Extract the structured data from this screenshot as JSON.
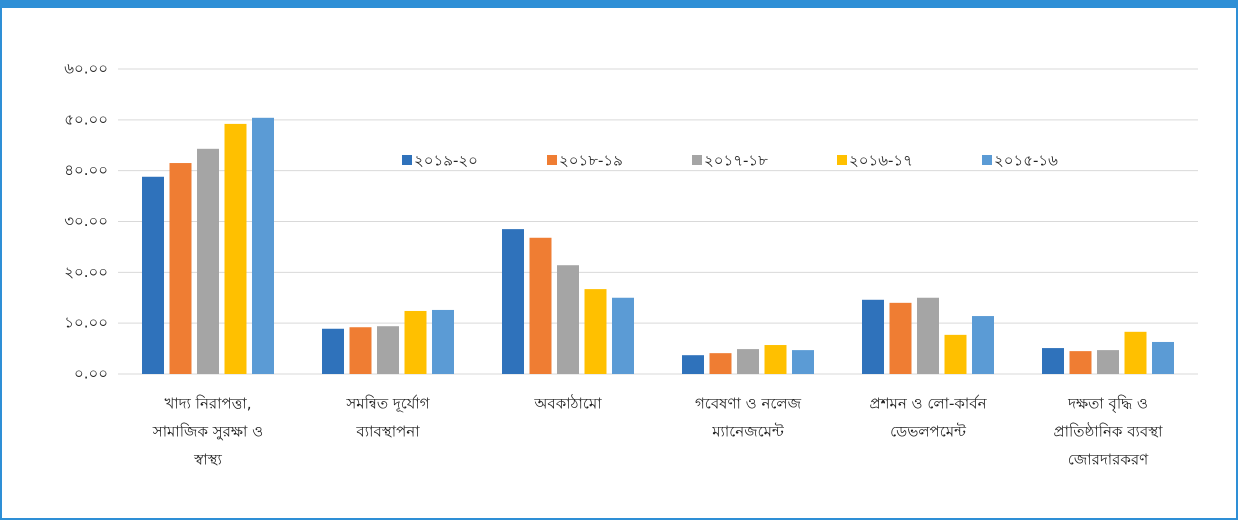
{
  "chart_data": {
    "type": "bar",
    "categories": [
      [
        "খাদ্য নিরাপত্তা,",
        "সামাজিক সুরক্ষা ও",
        "স্বাস্থ্য"
      ],
      [
        "সমন্বিত দূর্যোগ",
        "ব্যাবস্থাপনা"
      ],
      [
        "অবকাঠামো"
      ],
      [
        "গবেষণা ও নলেজ",
        "ম্যানেজমেন্ট"
      ],
      [
        "প্রশমন ও লো-কার্বন",
        "ডেভলপমেন্ট"
      ],
      [
        "দক্ষতা বৃদ্ধি ও",
        "প্রাতিষ্ঠানিক ব্যবস্থা",
        "জোরদারকরণ"
      ]
    ],
    "series": [
      {
        "name": "২০১৯-২০",
        "color": "#2f72bb",
        "values": [
          38.8,
          8.9,
          28.5,
          3.7,
          14.6,
          5.1
        ]
      },
      {
        "name": "২০১৮-১৯",
        "color": "#ef7d33",
        "values": [
          41.5,
          9.2,
          26.8,
          4.1,
          14.0,
          4.5
        ]
      },
      {
        "name": "২০১৭-১৮",
        "color": "#a5a5a5",
        "values": [
          44.3,
          9.4,
          21.4,
          4.9,
          15.0,
          4.7
        ]
      },
      {
        "name": "২০১৬-১৭",
        "color": "#ffc000",
        "values": [
          49.2,
          12.4,
          16.7,
          5.7,
          7.7,
          8.3
        ]
      },
      {
        "name": "২০১৫-১৬",
        "color": "#5b9bd5",
        "values": [
          50.4,
          12.6,
          15.0,
          4.7,
          11.4,
          6.3
        ]
      }
    ],
    "ylim": [
      0,
      60
    ],
    "yticks": [
      {
        "value": 0,
        "label": "০.০০"
      },
      {
        "value": 10,
        "label": "১০.০০"
      },
      {
        "value": 20,
        "label": "২০.০০"
      },
      {
        "value": 30,
        "label": "৩০.০০"
      },
      {
        "value": 40,
        "label": "৪০.০০"
      },
      {
        "value": 50,
        "label": "৫০.০০"
      },
      {
        "value": 60,
        "label": "৬০.০০"
      }
    ],
    "grid": true,
    "legend": "top"
  }
}
